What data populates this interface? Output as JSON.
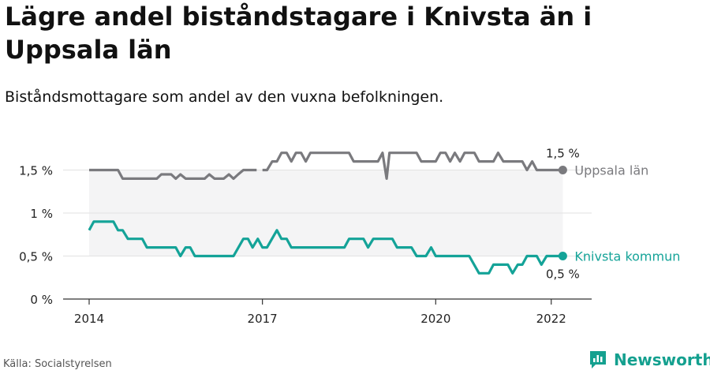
{
  "title": "Lägre andel biståndstagare i Knivsta än i Uppsala län",
  "subtitle": "Biståndsmottagare som andel av den vuxna befolkningen.",
  "source": "Källa: Socialstyrelsen",
  "brand": "Newsworthy",
  "colors": {
    "uppsala": "#7a7a7e",
    "knivsta": "#14a398",
    "band": "#f4f4f5",
    "grid": "#e2e2e2",
    "axis": "#333333",
    "brand": "#14a08f"
  },
  "chart_data": {
    "type": "line",
    "ylim": [
      0,
      1.8
    ],
    "xlim": [
      2014.0,
      2022.7
    ],
    "y_ticks": [
      {
        "value": 0,
        "label": "0 %"
      },
      {
        "value": 0.5,
        "label": "0,5 %"
      },
      {
        "value": 1,
        "label": "1 %"
      },
      {
        "value": 1.5,
        "label": "1,5 %"
      }
    ],
    "x_ticks": [
      {
        "value": 2014,
        "label": "2014"
      },
      {
        "value": 2017,
        "label": "2017"
      },
      {
        "value": 2020,
        "label": "2020"
      },
      {
        "value": 2022,
        "label": "2022"
      }
    ],
    "grid": true,
    "series": [
      {
        "name": "Uppsala län",
        "color_key": "uppsala",
        "end_label": "1,5 %",
        "points": [
          [
            2014.0,
            1.5
          ],
          [
            2014.5,
            1.5
          ],
          [
            2014.58,
            1.4
          ],
          [
            2015.17,
            1.4
          ],
          [
            2015.25,
            1.45
          ],
          [
            2015.42,
            1.45
          ],
          [
            2015.5,
            1.4
          ],
          [
            2015.58,
            1.45
          ],
          [
            2015.67,
            1.4
          ],
          [
            2016.0,
            1.4
          ],
          [
            2016.08,
            1.45
          ],
          [
            2016.17,
            1.4
          ],
          [
            2016.33,
            1.4
          ],
          [
            2016.42,
            1.45
          ],
          [
            2016.5,
            1.4
          ],
          [
            2016.58,
            1.45
          ],
          [
            2016.67,
            1.5
          ],
          [
            2016.9,
            1.5
          ],
          null,
          [
            2017.0,
            1.5
          ],
          [
            2017.08,
            1.5
          ],
          [
            2017.17,
            1.6
          ],
          [
            2017.25,
            1.6
          ],
          [
            2017.33,
            1.7
          ],
          [
            2017.42,
            1.7
          ],
          [
            2017.5,
            1.6
          ],
          [
            2017.58,
            1.7
          ],
          [
            2017.67,
            1.7
          ],
          [
            2017.75,
            1.6
          ],
          [
            2017.83,
            1.7
          ],
          [
            2018.5,
            1.7
          ],
          [
            2018.58,
            1.6
          ],
          [
            2019.0,
            1.6
          ],
          [
            2019.08,
            1.7
          ],
          [
            2019.15,
            1.4
          ],
          [
            2019.2,
            1.7
          ],
          [
            2019.67,
            1.7
          ],
          [
            2019.75,
            1.6
          ],
          [
            2020.0,
            1.6
          ],
          [
            2020.08,
            1.7
          ],
          [
            2020.17,
            1.7
          ],
          [
            2020.25,
            1.6
          ],
          [
            2020.33,
            1.7
          ],
          [
            2020.42,
            1.6
          ],
          [
            2020.5,
            1.7
          ],
          [
            2020.67,
            1.7
          ],
          [
            2020.75,
            1.6
          ],
          [
            2021.0,
            1.6
          ],
          [
            2021.08,
            1.7
          ],
          [
            2021.17,
            1.6
          ],
          [
            2021.5,
            1.6
          ],
          [
            2021.58,
            1.5
          ],
          [
            2021.67,
            1.6
          ],
          [
            2021.75,
            1.5
          ],
          [
            2022.2,
            1.5
          ]
        ]
      },
      {
        "name": "Knivsta kommun",
        "color_key": "knivsta",
        "end_label": "0,5 %",
        "points": [
          [
            2014.0,
            0.8
          ],
          [
            2014.08,
            0.9
          ],
          [
            2014.42,
            0.9
          ],
          [
            2014.5,
            0.8
          ],
          [
            2014.58,
            0.8
          ],
          [
            2014.67,
            0.7
          ],
          [
            2014.92,
            0.7
          ],
          [
            2015.0,
            0.6
          ],
          [
            2015.5,
            0.6
          ],
          [
            2015.58,
            0.5
          ],
          [
            2015.67,
            0.6
          ],
          [
            2015.75,
            0.6
          ],
          [
            2015.83,
            0.5
          ],
          [
            2016.5,
            0.5
          ],
          [
            2016.67,
            0.7
          ],
          [
            2016.75,
            0.7
          ],
          [
            2016.83,
            0.6
          ],
          [
            2016.92,
            0.7
          ],
          [
            2017.0,
            0.6
          ],
          [
            2017.08,
            0.6
          ],
          [
            2017.25,
            0.8
          ],
          [
            2017.33,
            0.7
          ],
          [
            2017.42,
            0.7
          ],
          [
            2017.5,
            0.6
          ],
          [
            2018.42,
            0.6
          ],
          [
            2018.5,
            0.7
          ],
          [
            2018.75,
            0.7
          ],
          [
            2018.83,
            0.6
          ],
          [
            2018.92,
            0.7
          ],
          [
            2019.25,
            0.7
          ],
          [
            2019.33,
            0.6
          ],
          [
            2019.58,
            0.6
          ],
          [
            2019.67,
            0.5
          ],
          [
            2019.83,
            0.5
          ],
          [
            2019.92,
            0.6
          ],
          [
            2020.0,
            0.5
          ],
          [
            2020.58,
            0.5
          ],
          [
            2020.75,
            0.3
          ],
          [
            2020.92,
            0.3
          ],
          [
            2021.0,
            0.4
          ],
          [
            2021.25,
            0.4
          ],
          [
            2021.33,
            0.3
          ],
          [
            2021.42,
            0.4
          ],
          [
            2021.5,
            0.4
          ],
          [
            2021.58,
            0.5
          ],
          [
            2021.75,
            0.5
          ],
          [
            2021.83,
            0.4
          ],
          [
            2021.92,
            0.5
          ],
          [
            2022.2,
            0.5
          ]
        ]
      }
    ]
  }
}
